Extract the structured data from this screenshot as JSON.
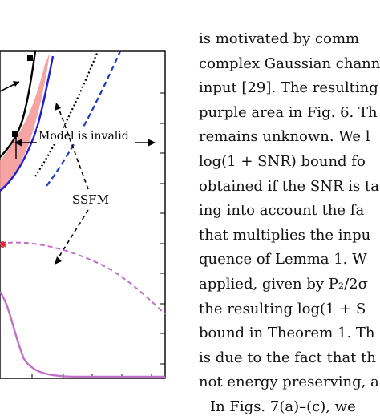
{
  "figure": {
    "annotations": {
      "invalid_label": "Model is invalid",
      "ssfm_label": "SSFM"
    },
    "colors": {
      "frame": "#000000",
      "black_curve": "#000000",
      "blue_curve": "#1f1fd0",
      "dashed_blue": "#1a3cc8",
      "dotted_black": "#000000",
      "shaded_region": "#f49a9a",
      "purple_dashed": "#c070c8",
      "purple_solid": "#c070c8",
      "marker_red": "#e0202a"
    },
    "icons": [
      "square-marker",
      "red-asterisk-marker",
      "arrow-head"
    ]
  },
  "text_column": {
    "lines": [
      "is motivated by comm",
      "complex Gaussian chann",
      "input [29]. The resulting",
      "purple area in Fig. 6. Th",
      "remains unknown. We l",
      "log(1 + SNR) bound fo",
      "obtained if the SNR is ta",
      "ing into account the fa",
      "that multiplies the inpu",
      "quence of Lemma 1. W",
      "applied, given by P₂/2σ",
      "the resulting log(1 + S",
      "bound in Theorem 1. Th",
      "is due to the fact that th",
      "not energy preserving, a",
      "In Figs. 7(a)–(c), we"
    ]
  }
}
